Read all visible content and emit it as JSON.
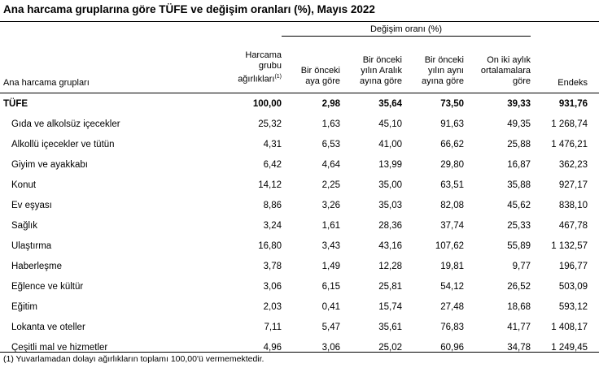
{
  "title": "Ana harcama gruplarına göre TÜFE ve değişim oranları (%), Mayıs 2022",
  "header": {
    "group_label": "Ana harcama grupları",
    "weights": "Harcama\ngrubu\nağırlıkları",
    "weights_note": "(1)",
    "change_group": "Değişim oranı (%)",
    "monthly": "Bir önceki\naya göre",
    "dec": "Bir önceki\nyılın Aralık\nayına göre",
    "yoy": "Bir önceki\nyılın aynı\nayına göre",
    "avg12": "On iki aylık\nortalamalara\ngöre",
    "index": "Endeks"
  },
  "rows": [
    {
      "label": "TÜFE",
      "weight": "100,00",
      "monthly": "2,98",
      "dec": "35,64",
      "yoy": "73,50",
      "avg12": "39,33",
      "index": "931,76"
    },
    {
      "label": "Gıda ve alkolsüz içecekler",
      "weight": "25,32",
      "monthly": "1,63",
      "dec": "45,10",
      "yoy": "91,63",
      "avg12": "49,35",
      "index": "1 268,74"
    },
    {
      "label": "Alkollü içecekler ve tütün",
      "weight": "4,31",
      "monthly": "6,53",
      "dec": "41,00",
      "yoy": "66,62",
      "avg12": "25,88",
      "index": "1 476,21"
    },
    {
      "label": "Giyim ve ayakkabı",
      "weight": "6,42",
      "monthly": "4,64",
      "dec": "13,99",
      "yoy": "29,80",
      "avg12": "16,87",
      "index": "362,23"
    },
    {
      "label": "Konut",
      "weight": "14,12",
      "monthly": "2,25",
      "dec": "35,00",
      "yoy": "63,51",
      "avg12": "35,88",
      "index": "927,17"
    },
    {
      "label": "Ev eşyası",
      "weight": "8,86",
      "monthly": "3,26",
      "dec": "35,03",
      "yoy": "82,08",
      "avg12": "45,62",
      "index": "838,10"
    },
    {
      "label": "Sağlık",
      "weight": "3,24",
      "monthly": "1,61",
      "dec": "28,36",
      "yoy": "37,74",
      "avg12": "25,33",
      "index": "467,78"
    },
    {
      "label": "Ulaştırma",
      "weight": "16,80",
      "monthly": "3,43",
      "dec": "43,16",
      "yoy": "107,62",
      "avg12": "55,89",
      "index": "1 132,57"
    },
    {
      "label": "Haberleşme",
      "weight": "3,78",
      "monthly": "1,49",
      "dec": "12,28",
      "yoy": "19,81",
      "avg12": "9,77",
      "index": "196,77"
    },
    {
      "label": "Eğlence ve kültür",
      "weight": "3,06",
      "monthly": "6,15",
      "dec": "25,81",
      "yoy": "54,12",
      "avg12": "26,52",
      "index": "503,09"
    },
    {
      "label": "Eğitim",
      "weight": "2,03",
      "monthly": "0,41",
      "dec": "15,74",
      "yoy": "27,48",
      "avg12": "18,68",
      "index": "593,12"
    },
    {
      "label": "Lokanta ve oteller",
      "weight": "7,11",
      "monthly": "5,47",
      "dec": "35,61",
      "yoy": "76,83",
      "avg12": "41,77",
      "index": "1 408,17"
    },
    {
      "label": "Çeşitli mal ve hizmetler",
      "weight": "4,96",
      "monthly": "3,06",
      "dec": "25,02",
      "yoy": "60,96",
      "avg12": "34,78",
      "index": "1 249,45"
    }
  ],
  "footnote": "(1) Yuvarlamadan dolayı ağırlıkların toplamı 100,00'ü vermemektedir."
}
